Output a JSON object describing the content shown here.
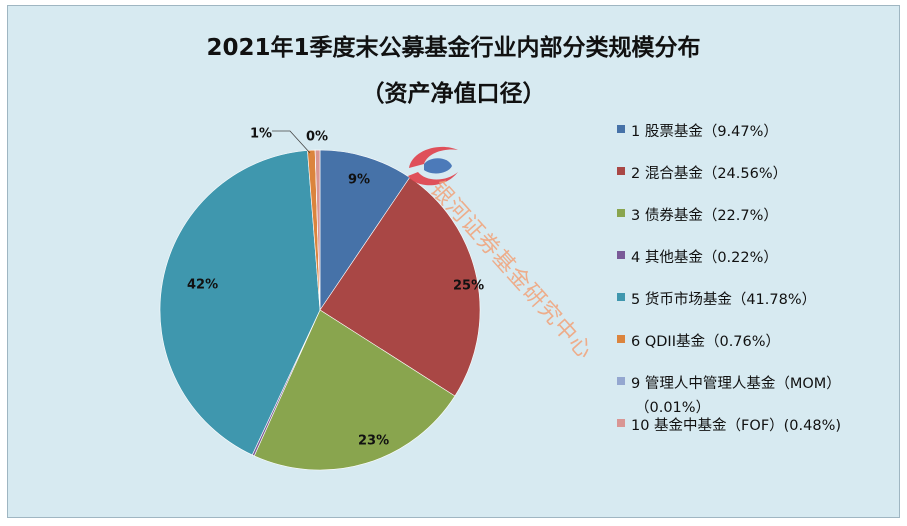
{
  "chart_data": {
    "type": "pie",
    "title": "2021年1季度末公募基金行业内部分类规模分布",
    "subtitle": "（资产净值口径）",
    "slices": [
      {
        "legend": "1 股票基金（9.47%）",
        "value": 9.47,
        "data_label": "9%",
        "color": "#4672a8"
      },
      {
        "legend": "2 混合基金（24.56%）",
        "value": 24.56,
        "data_label": "25%",
        "color": "#a94745"
      },
      {
        "legend": "3 债券基金（22.7%）",
        "value": 22.7,
        "data_label": "23%",
        "color": "#89a54e"
      },
      {
        "legend": "4 其他基金（0.22%）",
        "value": 0.22,
        "data_label": "",
        "color": "#7a5a98"
      },
      {
        "legend": "5 货币市场基金（41.78%）",
        "value": 41.78,
        "data_label": "42%",
        "color": "#3f97ae"
      },
      {
        "legend": "6 QDII基金（0.76%）",
        "value": 0.76,
        "data_label": "1%",
        "color": "#db843d"
      },
      {
        "legend": "9 管理人中管理人基金（MOM）",
        "legend_line2": "（0.01%）",
        "value": 0.01,
        "data_label": "0%",
        "color": "#94a7d0"
      },
      {
        "legend": "10 基金中基金（FOF）(0.48%)",
        "value": 0.48,
        "data_label": "",
        "color": "#d99694"
      }
    ],
    "legend_position": "right"
  },
  "watermark": {
    "text": "银河证券基金研究中心",
    "colors": [
      "#e0404a",
      "#3d6eb4"
    ]
  }
}
